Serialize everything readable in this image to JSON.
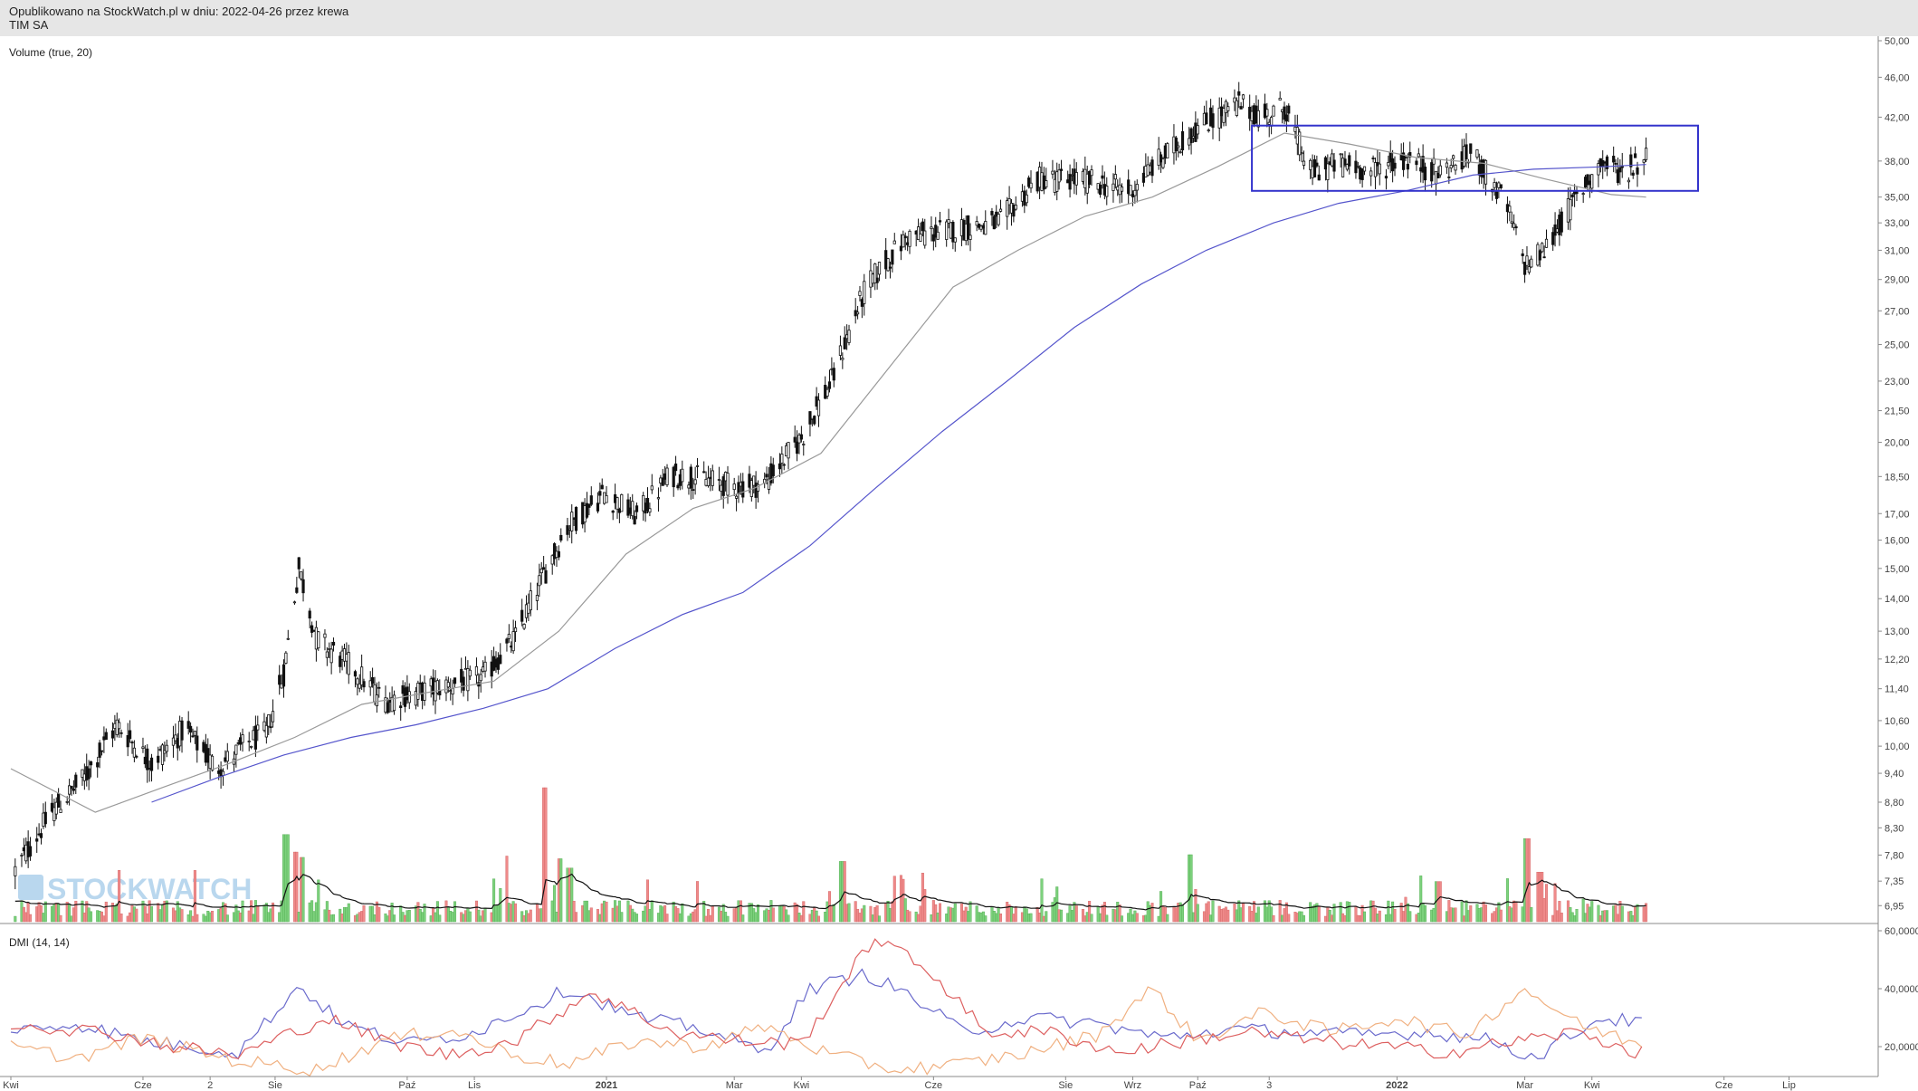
{
  "header": {
    "published": "Opublikowano na StockWatch.pl w dniu: 2022-04-26 przez krewa",
    "ticker": "TIM SA"
  },
  "watermark": "STOCKWATCH",
  "chart_data": [
    {
      "type": "candlestick",
      "panel": "price",
      "label": "Volume (true, 20)",
      "y_scale": "log",
      "ylim": [
        6.7,
        50.0
      ],
      "y_ticks": [
        "50,00",
        "46,00",
        "42,00",
        "38,00",
        "35,00",
        "33,00",
        "31,00",
        "29,00",
        "27,00",
        "25,00",
        "23,00",
        "21,50",
        "20,00",
        "18,50",
        "17,00",
        "16,00",
        "15,00",
        "14,00",
        "13,00",
        "12,20",
        "11,40",
        "10,60",
        "10,00",
        "9,40",
        "8,80",
        "8,30",
        "7,80",
        "7,35",
        "6,95"
      ],
      "x_ticks": [
        "Kwi",
        "Cze",
        "2",
        "Sie",
        "Paź",
        "Lis",
        "2021",
        "Mar",
        "Kwi",
        "Cze",
        "Sie",
        "Wrz",
        "Paź",
        "3",
        "2022",
        "Mar",
        "Kwi",
        "Cze",
        "Lip"
      ],
      "grid": false,
      "close_path": [
        [
          "2020-04-01",
          7.4
        ],
        [
          "2020-04-20",
          8.6
        ],
        [
          "2020-05-05",
          9.3
        ],
        [
          "2020-05-20",
          10.5
        ],
        [
          "2020-06-05",
          9.6
        ],
        [
          "2020-06-20",
          10.4
        ],
        [
          "2020-07-05",
          9.5
        ],
        [
          "2020-07-20",
          10.1
        ],
        [
          "2020-07-28",
          10.3
        ],
        [
          "2020-08-05",
          11.8
        ],
        [
          "2020-08-12",
          15.0
        ],
        [
          "2020-08-20",
          12.8
        ],
        [
          "2020-09-05",
          12.0
        ],
        [
          "2020-09-20",
          11.1
        ],
        [
          "2020-10-05",
          11.3
        ],
        [
          "2020-10-20",
          11.5
        ],
        [
          "2020-11-05",
          11.7
        ],
        [
          "2020-11-20",
          12.8
        ],
        [
          "2020-12-01",
          14.5
        ],
        [
          "2020-12-15",
          16.6
        ],
        [
          "2020-12-31",
          17.8
        ],
        [
          "2021-01-15",
          16.9
        ],
        [
          "2021-01-31",
          18.6
        ],
        [
          "2021-02-15",
          18.4
        ],
        [
          "2021-03-01",
          18.1
        ],
        [
          "2021-03-15",
          18.2
        ],
        [
          "2021-04-01",
          20.2
        ],
        [
          "2021-04-15",
          23.0
        ],
        [
          "2021-05-01",
          28.5
        ],
        [
          "2021-05-20",
          32.0
        ],
        [
          "2021-06-10",
          32.5
        ],
        [
          "2021-07-01",
          33.0
        ],
        [
          "2021-07-20",
          36.5
        ],
        [
          "2021-08-10",
          36.4
        ],
        [
          "2021-08-31",
          35.5
        ],
        [
          "2021-09-10",
          37.5
        ],
        [
          "2021-10-01",
          41.0
        ],
        [
          "2021-10-20",
          43.3
        ],
        [
          "2021-10-31",
          42.0
        ],
        [
          "2021-11-10",
          43.0
        ],
        [
          "2021-11-22",
          37.0
        ],
        [
          "2021-12-05",
          37.8
        ],
        [
          "2021-12-20",
          37.2
        ],
        [
          "2022-01-05",
          38.2
        ],
        [
          "2022-01-20",
          37.0
        ],
        [
          "2022-02-05",
          38.6
        ],
        [
          "2022-02-20",
          34.5
        ],
        [
          "2022-03-01",
          30.0
        ],
        [
          "2022-03-10",
          31.0
        ],
        [
          "2022-03-25",
          35.0
        ],
        [
          "2022-04-05",
          37.8
        ],
        [
          "2022-04-15",
          37.0
        ],
        [
          "2022-04-26",
          38.3
        ]
      ],
      "series": [
        {
          "kind": "moving-average",
          "color": "#999999",
          "points": [
            [
              "2020-04-01",
              9.5
            ],
            [
              "2020-05-10",
              8.6
            ],
            [
              "2020-06-10",
              9.1
            ],
            [
              "2020-07-10",
              9.6
            ],
            [
              "2020-08-10",
              10.2
            ],
            [
              "2020-09-10",
              11.0
            ],
            [
              "2020-10-10",
              11.3
            ],
            [
              "2020-11-10",
              11.6
            ],
            [
              "2020-12-10",
              13.0
            ],
            [
              "2021-01-10",
              15.5
            ],
            [
              "2021-02-10",
              17.2
            ],
            [
              "2021-03-10",
              18.0
            ],
            [
              "2021-04-10",
              19.5
            ],
            [
              "2021-05-10",
              23.5
            ],
            [
              "2021-06-10",
              28.5
            ],
            [
              "2021-07-10",
              31.0
            ],
            [
              "2021-08-10",
              33.5
            ],
            [
              "2021-09-10",
              35.0
            ],
            [
              "2021-10-10",
              37.5
            ],
            [
              "2021-11-10",
              40.5
            ],
            [
              "2021-12-10",
              39.5
            ],
            [
              "2022-01-10",
              38.3
            ],
            [
              "2022-02-10",
              37.8
            ],
            [
              "2022-03-10",
              36.5
            ],
            [
              "2022-04-10",
              35.2
            ],
            [
              "2022-04-26",
              35.0
            ]
          ]
        },
        {
          "kind": "moving-average",
          "color": "#5555cc",
          "points": [
            [
              "2020-06-05",
              8.8
            ],
            [
              "2020-07-05",
              9.3
            ],
            [
              "2020-08-05",
              9.8
            ],
            [
              "2020-09-05",
              10.2
            ],
            [
              "2020-10-05",
              10.5
            ],
            [
              "2020-11-05",
              10.9
            ],
            [
              "2020-12-05",
              11.4
            ],
            [
              "2021-01-05",
              12.5
            ],
            [
              "2021-02-05",
              13.5
            ],
            [
              "2021-03-05",
              14.2
            ],
            [
              "2021-04-05",
              15.8
            ],
            [
              "2021-05-05",
              18.0
            ],
            [
              "2021-06-05",
              20.5
            ],
            [
              "2021-07-05",
              23.0
            ],
            [
              "2021-08-05",
              26.0
            ],
            [
              "2021-09-05",
              28.7
            ],
            [
              "2021-10-05",
              31.0
            ],
            [
              "2021-11-05",
              33.0
            ],
            [
              "2021-12-05",
              34.5
            ],
            [
              "2022-01-05",
              35.5
            ],
            [
              "2022-02-05",
              36.8
            ],
            [
              "2022-03-05",
              37.3
            ],
            [
              "2022-04-05",
              37.5
            ],
            [
              "2022-04-26",
              37.7
            ]
          ]
        }
      ],
      "annotations": [
        {
          "type": "rectangle",
          "color": "#3333cc",
          "x": [
            "2021-10-26",
            "2022-05-20"
          ],
          "y": [
            35.5,
            41.2
          ]
        }
      ]
    },
    {
      "type": "bar",
      "panel": "volume",
      "up_color": "#7dd17d",
      "down_color": "#ef8a8a",
      "average_line_color": "#111111",
      "spikes": [
        [
          "2020-04-22",
          0.13
        ],
        [
          "2020-08-06",
          0.65
        ],
        [
          "2020-08-10",
          0.52
        ],
        [
          "2020-08-14",
          0.48
        ],
        [
          "2020-11-15",
          0.49
        ],
        [
          "2020-12-04",
          1.0
        ],
        [
          "2020-12-11",
          0.47
        ],
        [
          "2020-12-15",
          0.4
        ],
        [
          "2021-04-20",
          0.45
        ],
        [
          "2021-09-27",
          0.5
        ],
        [
          "2022-01-20",
          0.3
        ],
        [
          "2022-03-02",
          0.62
        ],
        [
          "2022-03-08",
          0.37
        ]
      ]
    },
    {
      "type": "line",
      "panel": "dmi",
      "label": "DMI (14, 14)",
      "ylim": [
        10,
        60
      ],
      "y_ticks": [
        "60,0000",
        "40,0000",
        "20,0000"
      ],
      "series": [
        {
          "name": "+DI",
          "color": "#6a6acc",
          "points": [
            [
              "2020-04-01",
              25
            ],
            [
              "2020-05-01",
              28
            ],
            [
              "2020-06-01",
              22
            ],
            [
              "2020-07-15",
              18
            ],
            [
              "2020-08-12",
              41
            ],
            [
              "2020-09-01",
              28
            ],
            [
              "2020-10-01",
              21
            ],
            [
              "2020-11-01",
              25
            ],
            [
              "2020-12-15",
              40
            ],
            [
              "2021-01-15",
              30
            ],
            [
              "2021-02-15",
              26
            ],
            [
              "2021-03-15",
              18
            ],
            [
              "2021-04-05",
              40
            ],
            [
              "2021-05-01",
              45
            ],
            [
              "2021-05-20",
              38
            ],
            [
              "2021-06-15",
              25
            ],
            [
              "2021-07-15",
              30
            ],
            [
              "2021-08-15",
              28
            ],
            [
              "2021-09-15",
              23
            ],
            [
              "2021-10-15",
              26
            ],
            [
              "2021-11-15",
              25
            ],
            [
              "2021-12-15",
              24
            ],
            [
              "2022-01-15",
              25
            ],
            [
              "2022-02-15",
              22
            ],
            [
              "2022-03-05",
              16
            ],
            [
              "2022-04-05",
              30
            ],
            [
              "2022-04-26",
              28
            ]
          ]
        },
        {
          "name": "-DI",
          "color": "#f0b080",
          "points": [
            [
              "2020-04-01",
              20
            ],
            [
              "2020-05-01",
              16
            ],
            [
              "2020-06-01",
              23
            ],
            [
              "2020-07-15",
              15
            ],
            [
              "2020-08-20",
              12
            ],
            [
              "2020-09-20",
              22
            ],
            [
              "2020-10-20",
              26
            ],
            [
              "2020-11-20",
              17
            ],
            [
              "2020-12-15",
              14
            ],
            [
              "2021-01-15",
              22
            ],
            [
              "2021-02-15",
              20
            ],
            [
              "2021-03-15",
              27
            ],
            [
              "2021-04-15",
              17
            ],
            [
              "2021-05-15",
              12
            ],
            [
              "2021-06-15",
              14
            ],
            [
              "2021-07-15",
              18
            ],
            [
              "2021-08-15",
              24
            ],
            [
              "2021-09-10",
              40
            ],
            [
              "2021-10-01",
              22
            ],
            [
              "2021-11-01",
              32
            ],
            [
              "2021-12-01",
              25
            ],
            [
              "2022-01-01",
              30
            ],
            [
              "2022-02-01",
              24
            ],
            [
              "2022-03-01",
              40
            ],
            [
              "2022-03-25",
              28
            ],
            [
              "2022-04-26",
              20
            ]
          ]
        },
        {
          "name": "ADX",
          "color": "#dd6060",
          "points": [
            [
              "2020-04-01",
              28
            ],
            [
              "2020-05-15",
              25
            ],
            [
              "2020-06-15",
              20
            ],
            [
              "2020-07-15",
              17
            ],
            [
              "2020-08-25",
              30
            ],
            [
              "2020-09-20",
              22
            ],
            [
              "2020-10-20",
              17
            ],
            [
              "2020-11-20",
              22
            ],
            [
              "2020-12-25",
              39
            ],
            [
              "2021-02-01",
              25
            ],
            [
              "2021-03-01",
              22
            ],
            [
              "2021-04-01",
              21
            ],
            [
              "2021-05-05",
              58
            ],
            [
              "2021-06-01",
              45
            ],
            [
              "2021-06-25",
              25
            ],
            [
              "2021-07-25",
              25
            ],
            [
              "2021-08-25",
              18
            ],
            [
              "2021-09-25",
              22
            ],
            [
              "2021-10-25",
              25
            ],
            [
              "2021-11-25",
              22
            ],
            [
              "2021-12-25",
              20
            ],
            [
              "2022-01-25",
              18
            ],
            [
              "2022-02-25",
              22
            ],
            [
              "2022-03-25",
              25
            ],
            [
              "2022-04-26",
              17
            ]
          ]
        }
      ]
    }
  ]
}
